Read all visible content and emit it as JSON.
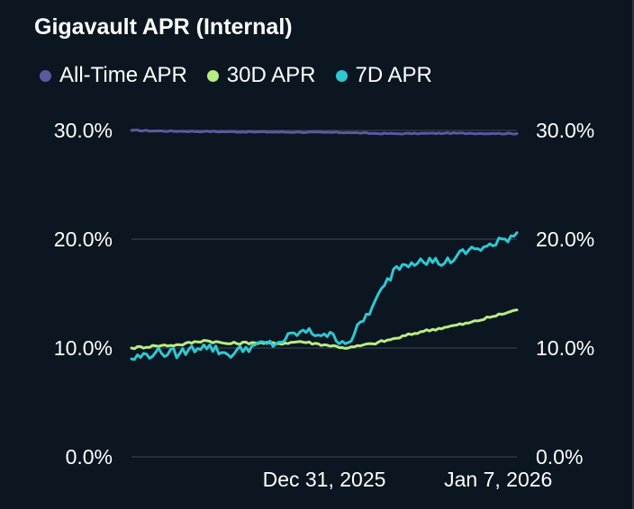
{
  "title": "Gigavault APR (Internal)",
  "legend": [
    {
      "label": "All-Time APR",
      "color": "#5a5aa0"
    },
    {
      "label": "30D APR",
      "color": "#b8ec84"
    },
    {
      "label": "7D APR",
      "color": "#2ec8d4"
    }
  ],
  "chart_data": {
    "type": "line",
    "title": "Gigavault APR (Internal)",
    "xlabel": "",
    "ylabel": "",
    "x_ticks": [
      "Dec 31, 2025",
      "Jan 7, 2026"
    ],
    "x_range": [
      "2025-12-23",
      "2026-01-08"
    ],
    "ylim": [
      0,
      30
    ],
    "y_ticks": [
      "0.0%",
      "10.0%",
      "20.0%",
      "30.0%"
    ],
    "y_tick_values": [
      0,
      10,
      20,
      30
    ],
    "dual_axis": true,
    "grid": true,
    "legend_position": "top-left",
    "series": [
      {
        "name": "All-Time APR",
        "color": "#5a5aa0",
        "x": [
          "2025-12-23",
          "2025-12-24",
          "2025-12-25",
          "2025-12-26",
          "2025-12-27",
          "2025-12-28",
          "2025-12-29",
          "2025-12-30",
          "2025-12-31",
          "2026-01-01",
          "2026-01-02",
          "2026-01-03",
          "2026-01-04",
          "2026-01-05",
          "2026-01-06",
          "2026-01-07",
          "2026-01-08"
        ],
        "values": [
          30.0,
          29.95,
          29.92,
          29.9,
          29.88,
          29.86,
          29.85,
          29.84,
          29.82,
          29.8,
          29.72,
          29.7,
          29.72,
          29.74,
          29.73,
          29.72,
          29.7
        ]
      },
      {
        "name": "30D APR",
        "color": "#b8ec84",
        "x": [
          "2025-12-23",
          "2025-12-24",
          "2025-12-25",
          "2025-12-26",
          "2025-12-27",
          "2025-12-28",
          "2025-12-29",
          "2025-12-30",
          "2025-12-31",
          "2026-01-01",
          "2026-01-02",
          "2026-01-03",
          "2026-01-04",
          "2026-01-05",
          "2026-01-06",
          "2026-01-07",
          "2026-01-08"
        ],
        "values": [
          10.0,
          10.2,
          10.3,
          10.7,
          10.4,
          10.5,
          10.4,
          10.6,
          10.3,
          10.0,
          10.4,
          10.9,
          11.5,
          11.9,
          12.3,
          12.9,
          13.5
        ]
      },
      {
        "name": "7D APR",
        "color": "#2ec8d4",
        "x": [
          "2025-12-23",
          "2025-12-24",
          "2025-12-25",
          "2025-12-26",
          "2025-12-27",
          "2025-12-28",
          "2025-12-29",
          "2025-12-30",
          "2025-12-31",
          "2026-01-01",
          "2026-01-02",
          "2026-01-03",
          "2026-01-04",
          "2026-01-05",
          "2026-01-06",
          "2026-01-07",
          "2026-01-08"
        ],
        "values": [
          9.0,
          9.6,
          9.5,
          10.3,
          9.4,
          10.2,
          10.4,
          11.5,
          11.3,
          10.5,
          13.8,
          17.5,
          18.2,
          17.8,
          19.0,
          19.4,
          20.6
        ]
      }
    ]
  }
}
